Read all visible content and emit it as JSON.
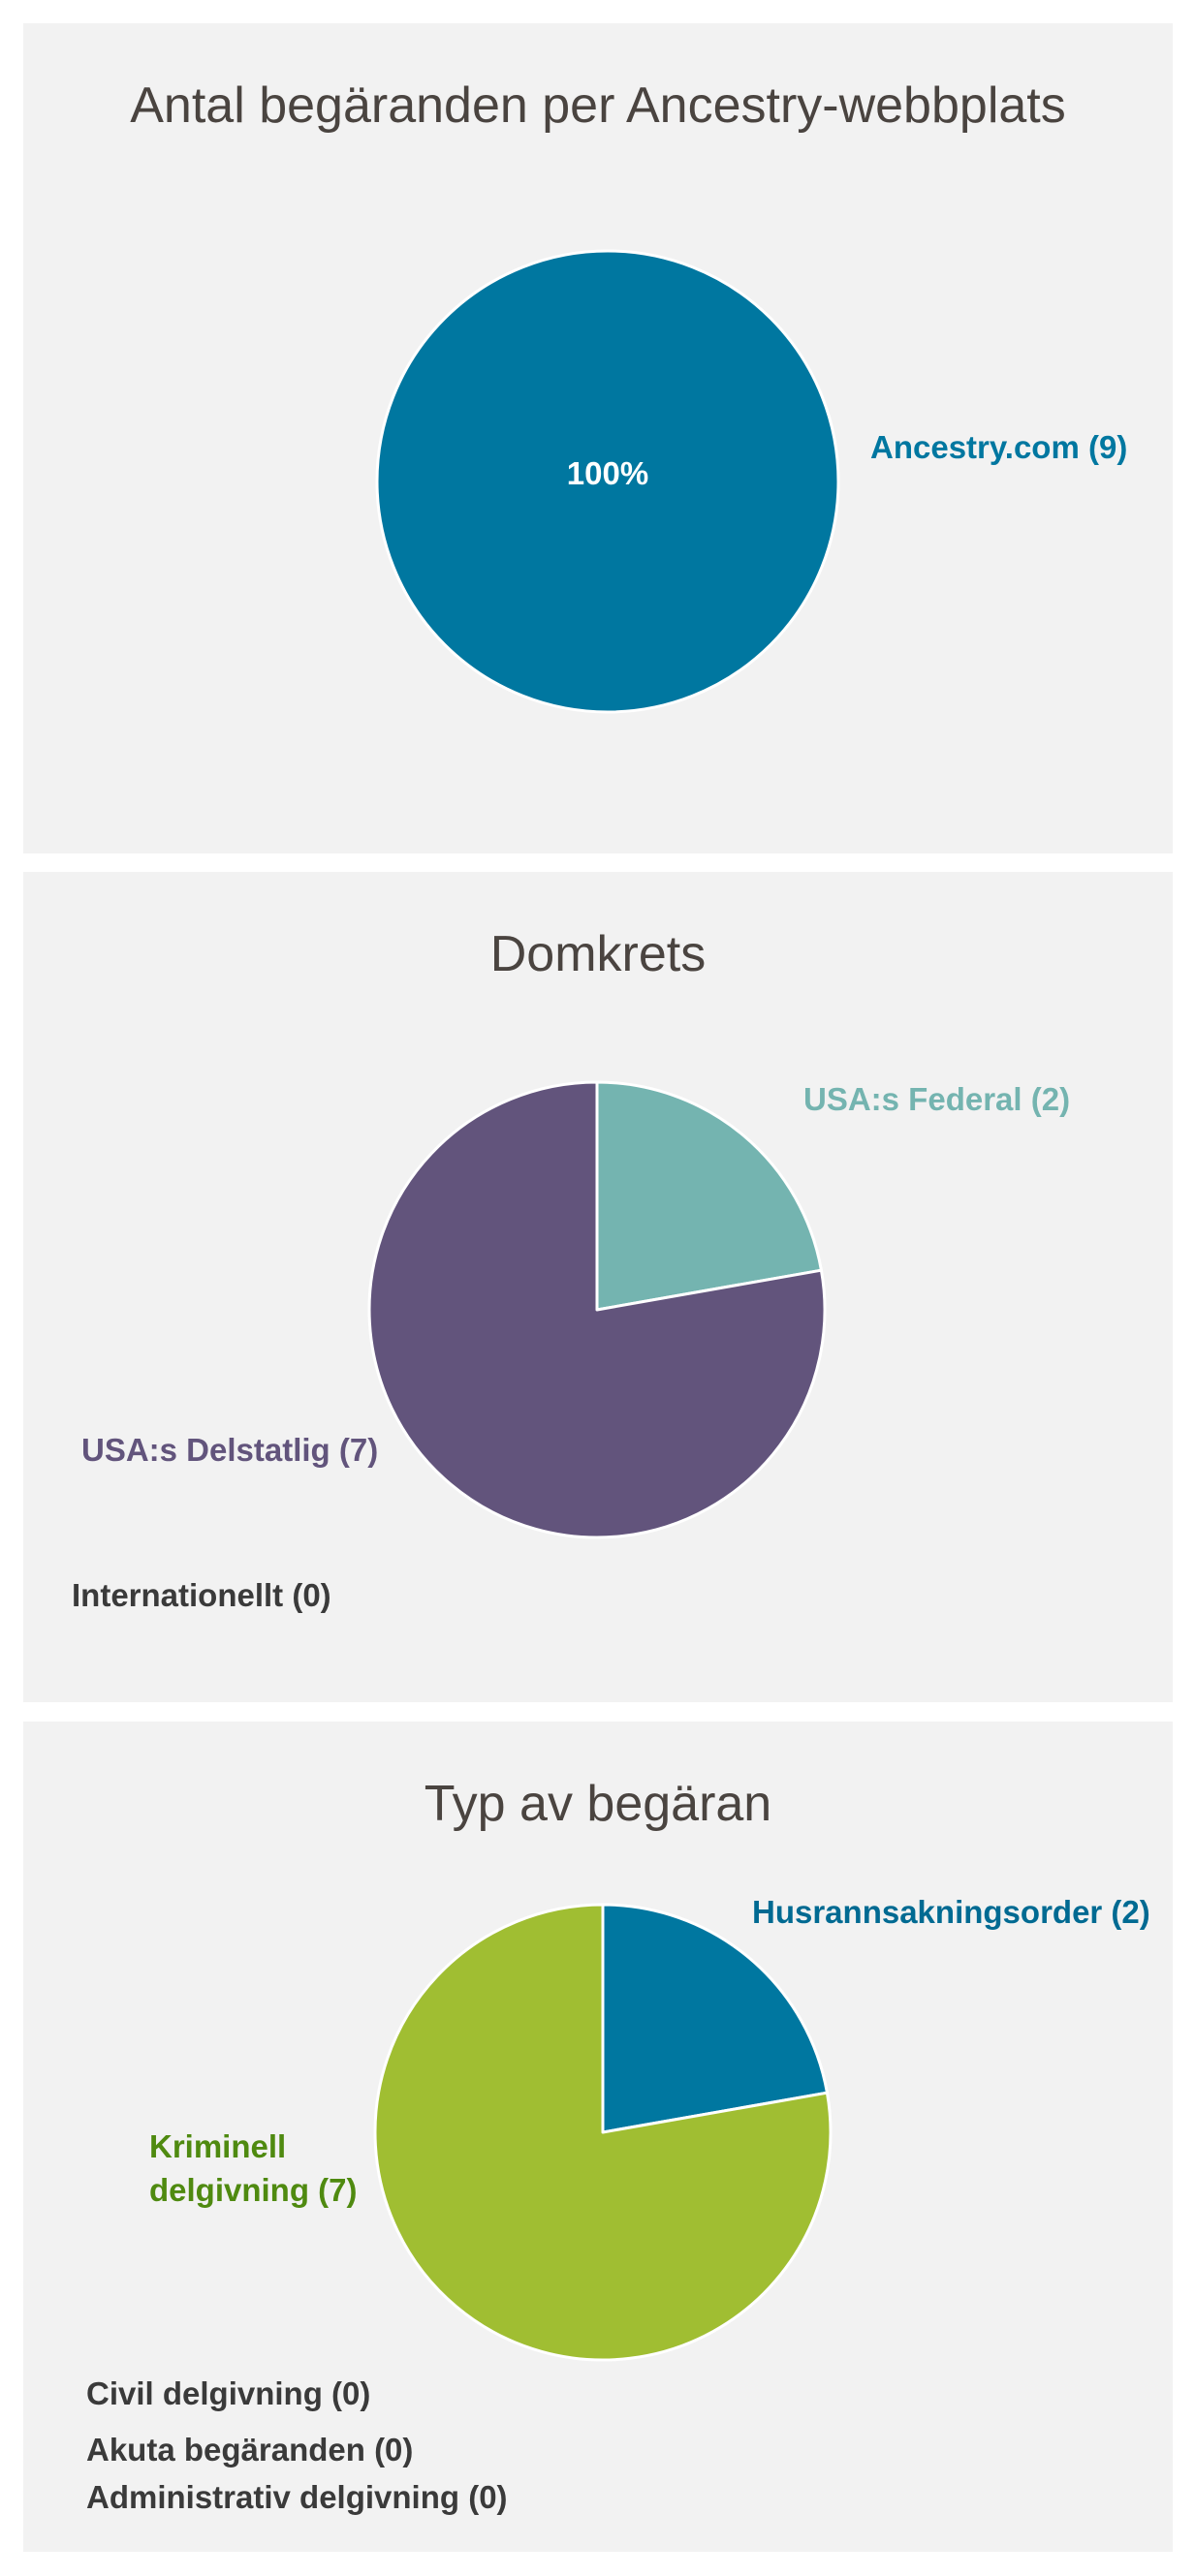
{
  "colors": {
    "panel_bg": "#f2f2f2",
    "ancestry_blue": "#0077a0",
    "federal_teal": "#74b4b0",
    "state_purple": "#62547c",
    "criminal_green": "#a0be32",
    "criminal_label_green": "#4f8a10",
    "warrant_blue": "#0077a0",
    "warrant_label_blue": "#006a92",
    "zero_text": "#3a3a3a"
  },
  "chart_data": [
    {
      "type": "pie",
      "title": "Antal begäranden per Ancestry-webbplats",
      "slices": [
        {
          "label": "Ancestry.com (9)",
          "value": 9,
          "color": "#0077a0",
          "inner_label": "100%"
        }
      ],
      "zero_entries": []
    },
    {
      "type": "pie",
      "title": "Domkrets",
      "slices": [
        {
          "label": "USA:s Federal (2)",
          "value": 2,
          "color": "#74b4b0"
        },
        {
          "label": "USA:s Delstatlig (7)",
          "value": 7,
          "color": "#62547c"
        }
      ],
      "zero_entries": [
        "Internationellt (0)"
      ]
    },
    {
      "type": "pie",
      "title": "Typ av begäran",
      "slices": [
        {
          "label": "Husrannsakningsorder (2)",
          "value": 2,
          "color": "#0077a0"
        },
        {
          "label_lines": [
            "Kriminell",
            "delgivning (7)"
          ],
          "value": 7,
          "color": "#a0be32"
        }
      ],
      "zero_entries": [
        "Civil delgivning (0)",
        "Akuta begäranden (0)",
        "Administrativ delgivning (0)"
      ]
    }
  ]
}
